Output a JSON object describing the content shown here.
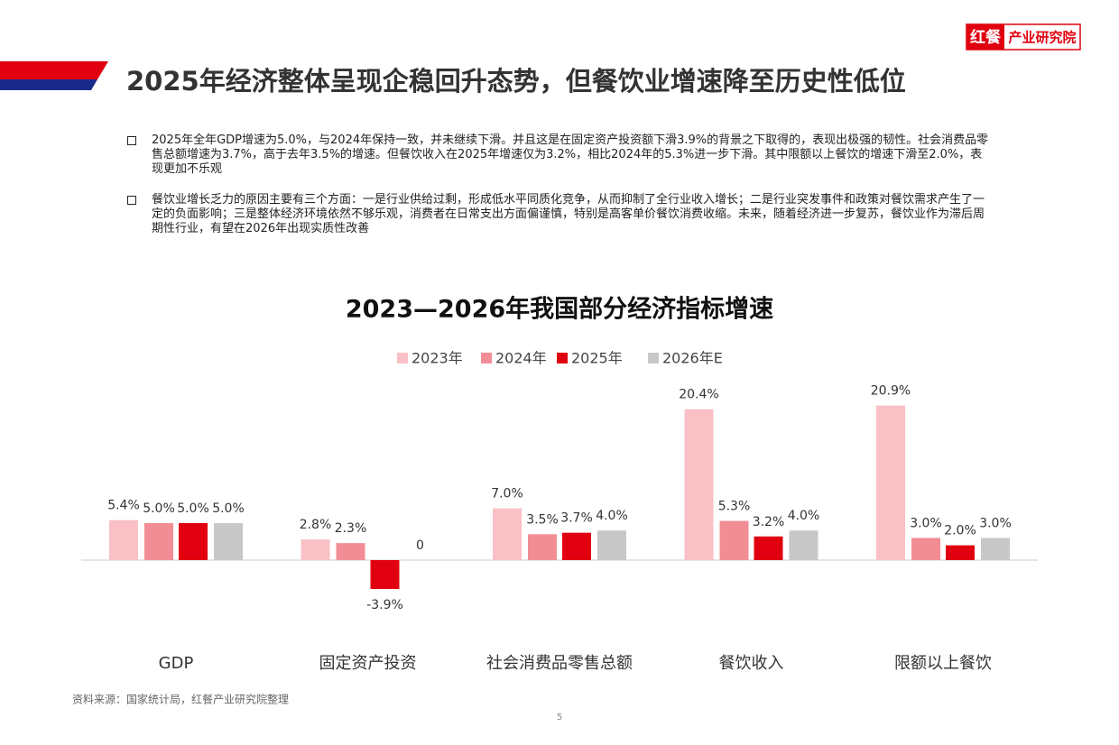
{
  "header": {
    "logo_brand": "红餐",
    "logo_name": "产业研究院",
    "title": "2025年经济整体呈现企稳回升态势，但餐饮业增速降至历史性低位"
  },
  "bullets": [
    "2025年全年GDP增速为5.0%，与2024年保持一致，并未继续下滑。并且这是在固定资产投资额下滑3.9%的背景之下取得的，表现出极强的韧性。社会消费品零售总额增速为3.7%，高于去年3.5%的增速。但餐饮收入在2025年增速仅为3.2%，相比2024年的5.3%进一步下滑。其中限额以上餐饮的增速下滑至2.0%，表现更加不乐观",
    "餐饮业增长乏力的原因主要有三个方面：一是行业供给过剩，形成低水平同质化竞争，从而抑制了全行业收入增长；二是行业突发事件和政策对餐饮需求产生了一定的负面影响；三是整体经济环境依然不够乐观，消费者在日常支出方面偏谨慎，特别是高客单价餐饮消费收缩。未来，随着经济进一步复苏，餐饮业作为滞后周期性行业，有望在2026年出现实质性改善"
  ],
  "chart_data": {
    "type": "bar",
    "title": "2023—2026年我国部分经济指标增速",
    "categories": [
      "GDP",
      "固定资产投资",
      "社会消费品零售总额",
      "餐饮收入",
      "限额以上餐饮"
    ],
    "series": [
      {
        "name": "2023年",
        "color": "#f9c0c6",
        "values": [
          5.4,
          2.8,
          7.0,
          20.4,
          20.9
        ],
        "value_labels": [
          "5.4%",
          "2.8%",
          "7.0%",
          "20.4%",
          "20.9%"
        ]
      },
      {
        "name": "2024年",
        "color": "#f28d95",
        "values": [
          5.0,
          2.3,
          3.5,
          5.3,
          3.0
        ],
        "value_labels": [
          "5.0%",
          "2.3%",
          "3.5%",
          "5.3%",
          "3.0%"
        ]
      },
      {
        "name": "2025年",
        "color": "#e0000f",
        "values": [
          5.0,
          -3.9,
          3.7,
          3.2,
          2.0
        ],
        "value_labels": [
          "5.0%",
          "-3.9%",
          "3.7%",
          "3.2%",
          "2.0%"
        ]
      },
      {
        "name": "2026年E",
        "color": "#c8c8c8",
        "values": [
          5.0,
          0,
          4.0,
          4.0,
          3.0
        ],
        "value_labels": [
          "5.0%",
          "0",
          "4.0%",
          "4.0%",
          "3.0%"
        ]
      }
    ]
  },
  "source": "资料来源：国家统计局，红餐产业研究院整理",
  "page_number": "5"
}
